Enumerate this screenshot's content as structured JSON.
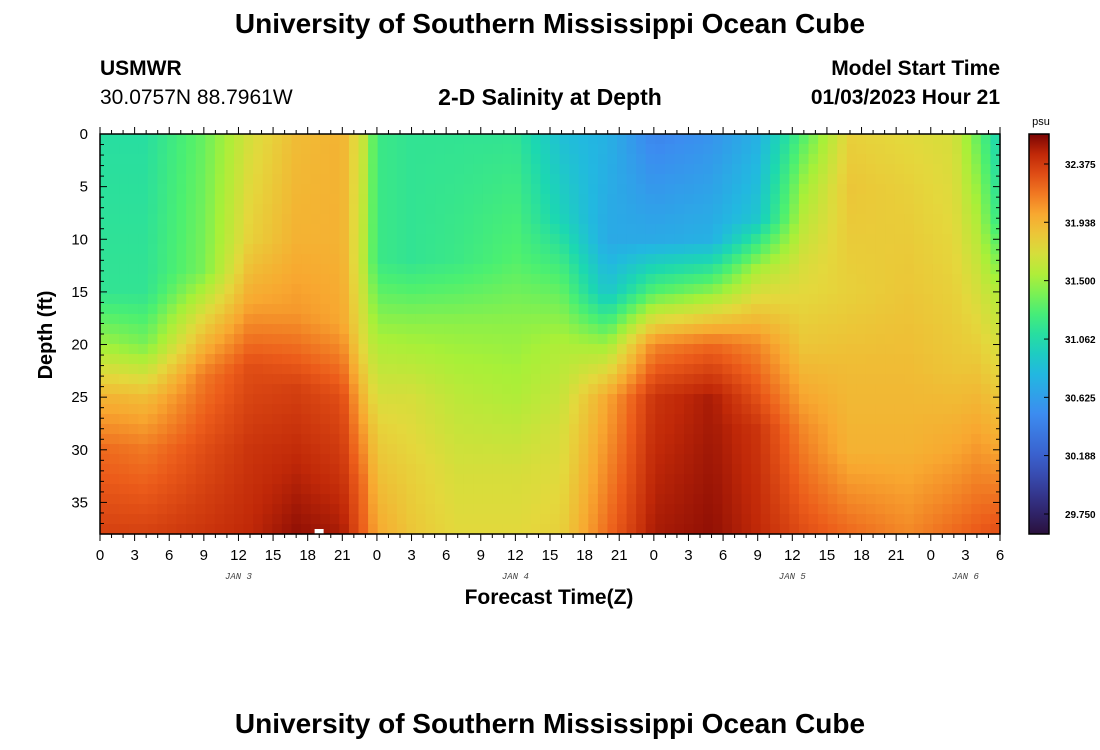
{
  "header": {
    "title": "University of Southern Mississippi Ocean Cube",
    "station": "USMWR",
    "coords": "30.0757N  88.7961W",
    "plot_title": "2-D Salinity at Depth",
    "model_start_label": "Model Start Time",
    "model_start_value": "01/03/2023 Hour 21"
  },
  "footer": {
    "title": "University of Southern Mississippi Ocean Cube"
  },
  "chart_data": {
    "type": "heatmap",
    "title": "2-D Salinity at Depth",
    "xlabel": "Forecast Time(Z)",
    "ylabel": "Depth (ft)",
    "x_hours_range": [
      0,
      78
    ],
    "ylim": [
      0,
      38
    ],
    "y_ticks": [
      0,
      5,
      10,
      15,
      20,
      25,
      30,
      35
    ],
    "x_tick_labels": [
      "0",
      "3",
      "6",
      "9",
      "12",
      "15",
      "18",
      "21",
      "0",
      "3",
      "6",
      "9",
      "12",
      "15",
      "18",
      "21",
      "0",
      "3",
      "6",
      "9",
      "12",
      "15",
      "18",
      "21",
      "0",
      "3",
      "6"
    ],
    "day_labels": [
      {
        "label": "JAN 3",
        "hour": 12
      },
      {
        "label": "JAN 4",
        "hour": 36
      },
      {
        "label": "JAN 5",
        "hour": 60
      },
      {
        "label": "JAN 6",
        "hour": 75
      }
    ],
    "colorbar": {
      "unit": "psu",
      "min": 29.6,
      "max": 32.6,
      "tick_values": [
        32.375,
        31.938,
        31.5,
        31.062,
        30.625,
        30.188,
        29.75
      ],
      "tick_labels": [
        "32.375",
        "31.938",
        "31.500",
        "31.062",
        "30.625",
        "30.188",
        "29.750"
      ]
    },
    "salinity_profiles_psu": [
      {
        "hour": 0,
        "depths": [
          0,
          15,
          20,
          25,
          30,
          38
        ],
        "values": [
          31.1,
          31.15,
          31.5,
          31.95,
          32.2,
          32.35
        ]
      },
      {
        "hour": 4,
        "depths": [
          0,
          15,
          20,
          25,
          30,
          38
        ],
        "values": [
          31.1,
          31.15,
          31.4,
          31.9,
          32.15,
          32.35
        ]
      },
      {
        "hour": 9,
        "depths": [
          0,
          13,
          18,
          23,
          30,
          38
        ],
        "values": [
          31.35,
          31.4,
          31.8,
          32.15,
          32.3,
          32.4
        ]
      },
      {
        "hour": 13,
        "depths": [
          0,
          10,
          16,
          22,
          30,
          38
        ],
        "values": [
          31.7,
          31.8,
          32.0,
          32.3,
          32.4,
          32.45
        ]
      },
      {
        "hour": 17,
        "depths": [
          0,
          10,
          17,
          24,
          31,
          38
        ],
        "values": [
          31.9,
          31.95,
          32.05,
          32.35,
          32.45,
          32.55
        ]
      },
      {
        "hour": 21,
        "depths": [
          0,
          10,
          18,
          25,
          32,
          38
        ],
        "values": [
          31.95,
          31.95,
          32.0,
          32.3,
          32.4,
          32.5
        ]
      },
      {
        "hour": 23,
        "depths": [
          0,
          12,
          20,
          28,
          33,
          38
        ],
        "values": [
          31.6,
          31.55,
          31.7,
          32.0,
          32.15,
          32.2
        ]
      },
      {
        "hour": 24,
        "depths": [
          0,
          12,
          20,
          28,
          33,
          38
        ],
        "values": [
          31.2,
          31.2,
          31.55,
          31.8,
          31.9,
          32.0
        ]
      },
      {
        "hour": 27,
        "depths": [
          0,
          12,
          18,
          25,
          32,
          38
        ],
        "values": [
          31.15,
          31.15,
          31.45,
          31.7,
          31.8,
          31.85
        ]
      },
      {
        "hour": 31,
        "depths": [
          0,
          12,
          18,
          25,
          32,
          38
        ],
        "values": [
          31.15,
          31.2,
          31.45,
          31.6,
          31.7,
          31.75
        ]
      },
      {
        "hour": 36,
        "depths": [
          0,
          12,
          18,
          25,
          32,
          38
        ],
        "values": [
          31.15,
          31.3,
          31.45,
          31.55,
          31.7,
          31.75
        ]
      },
      {
        "hour": 40,
        "depths": [
          0,
          8,
          14,
          20,
          28,
          38
        ],
        "values": [
          30.85,
          31.0,
          31.3,
          31.55,
          31.7,
          31.8
        ]
      },
      {
        "hour": 44,
        "depths": [
          0,
          10,
          15,
          20,
          25,
          38
        ],
        "values": [
          30.75,
          30.7,
          30.9,
          31.5,
          32.0,
          32.2
        ]
      },
      {
        "hour": 48,
        "depths": [
          0,
          10,
          15,
          20,
          25,
          38
        ],
        "values": [
          30.45,
          30.7,
          31.3,
          32.1,
          32.4,
          32.5
        ]
      },
      {
        "hour": 53,
        "depths": [
          0,
          10,
          15,
          20,
          25,
          38
        ],
        "values": [
          30.55,
          30.75,
          31.45,
          32.2,
          32.5,
          32.55
        ]
      },
      {
        "hour": 57,
        "depths": [
          0,
          8,
          13,
          20,
          28,
          38
        ],
        "values": [
          30.75,
          30.9,
          31.55,
          32.1,
          32.4,
          32.45
        ]
      },
      {
        "hour": 61,
        "depths": [
          0,
          5,
          12,
          20,
          28,
          38
        ],
        "values": [
          31.3,
          31.5,
          31.7,
          31.85,
          32.1,
          32.3
        ]
      },
      {
        "hour": 65,
        "depths": [
          0,
          5,
          15,
          22,
          30,
          38
        ],
        "values": [
          31.8,
          31.85,
          31.8,
          31.9,
          31.95,
          32.2
        ]
      },
      {
        "hour": 70,
        "depths": [
          0,
          5,
          15,
          22,
          30,
          38
        ],
        "values": [
          31.75,
          31.8,
          31.85,
          31.9,
          31.95,
          32.1
        ]
      },
      {
        "hour": 74,
        "depths": [
          0,
          8,
          15,
          22,
          30,
          38
        ],
        "values": [
          31.7,
          31.75,
          31.8,
          31.85,
          32.0,
          32.2
        ]
      },
      {
        "hour": 76,
        "depths": [
          0,
          8,
          15,
          22,
          30,
          38
        ],
        "values": [
          31.35,
          31.55,
          31.7,
          31.85,
          32.05,
          32.25
        ]
      },
      {
        "hour": 78,
        "depths": [
          0,
          8,
          15,
          22,
          30,
          38
        ],
        "values": [
          31.0,
          31.15,
          31.55,
          31.75,
          32.0,
          32.3
        ]
      }
    ]
  }
}
